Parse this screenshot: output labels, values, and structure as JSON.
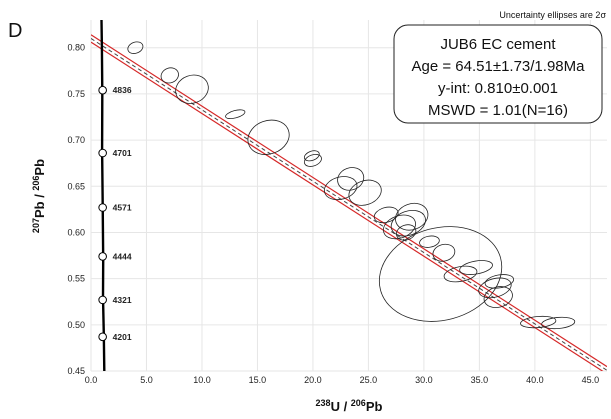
{
  "panel_label": "D",
  "top_note": "Uncertainty ellipses are 2σ",
  "stats_box": {
    "title": "JUB6 EC cement",
    "age": "Age = 64.51±1.73/1.98Ma",
    "yint": "y-int: 0.810±0.001",
    "mswd": "MSWD = 1.01(N=16)"
  },
  "chart_data": {
    "type": "scatter",
    "xlabel": {
      "sup": "238",
      "main": "U / ",
      "sup2": "206",
      "main2": "Pb"
    },
    "ylabel": {
      "sup": "207",
      "main": "Pb / ",
      "sup2": "206",
      "main2": "Pb"
    },
    "xlim": [
      0,
      46.5
    ],
    "ylim": [
      0.45,
      0.83
    ],
    "x_ticks": [
      "0.0",
      "5.0",
      "10.0",
      "15.0",
      "20.0",
      "25.0",
      "30.0",
      "35.0",
      "40.0",
      "45.0"
    ],
    "x_tick_values": [
      0,
      5,
      10,
      15,
      20,
      25,
      30,
      35,
      40,
      45
    ],
    "y_ticks": [
      "0.45",
      "0.50",
      "0.55",
      "0.60",
      "0.65",
      "0.70",
      "0.75",
      "0.80"
    ],
    "y_tick_values": [
      0.45,
      0.5,
      0.55,
      0.6,
      0.65,
      0.7,
      0.75,
      0.8
    ],
    "concordia_labels": [
      {
        "label": "4836",
        "x": 1.05,
        "y": 0.754
      },
      {
        "label": "4701",
        "x": 1.05,
        "y": 0.686
      },
      {
        "label": "4571",
        "x": 1.05,
        "y": 0.627
      },
      {
        "label": "4444",
        "x": 1.05,
        "y": 0.574
      },
      {
        "label": "4321",
        "x": 1.05,
        "y": 0.527
      },
      {
        "label": "4201",
        "x": 1.05,
        "y": 0.487
      }
    ],
    "concordia_curve": [
      [
        1.2,
        0.45
      ],
      [
        1.15,
        0.49
      ],
      [
        1.08,
        0.53
      ],
      [
        1.1,
        0.57
      ],
      [
        1.05,
        0.63
      ],
      [
        1.0,
        0.69
      ],
      [
        1.02,
        0.75
      ],
      [
        0.98,
        0.8
      ],
      [
        0.95,
        0.83
      ]
    ],
    "regression": {
      "y_intercept": 0.81,
      "x_at_ylim_min": 46.6,
      "upper_offset": 0.004,
      "lower_offset": -0.004
    },
    "ellipses": [
      {
        "x": 4.0,
        "y": 0.8,
        "rx": 0.7,
        "ry": 0.006,
        "rot": -20
      },
      {
        "x": 7.1,
        "y": 0.77,
        "rx": 0.8,
        "ry": 0.008,
        "rot": -20
      },
      {
        "x": 9.1,
        "y": 0.755,
        "rx": 1.5,
        "ry": 0.015,
        "rot": -20
      },
      {
        "x": 13.0,
        "y": 0.728,
        "rx": 0.9,
        "ry": 0.004,
        "rot": -15
      },
      {
        "x": 16.0,
        "y": 0.703,
        "rx": 1.9,
        "ry": 0.018,
        "rot": -20
      },
      {
        "x": 20.0,
        "y": 0.678,
        "rx": 0.8,
        "ry": 0.006,
        "rot": -20
      },
      {
        "x": 19.9,
        "y": 0.683,
        "rx": 0.7,
        "ry": 0.005,
        "rot": -20
      },
      {
        "x": 23.4,
        "y": 0.658,
        "rx": 1.2,
        "ry": 0.012,
        "rot": -20
      },
      {
        "x": 22.5,
        "y": 0.648,
        "rx": 1.5,
        "ry": 0.012,
        "rot": -15
      },
      {
        "x": 24.7,
        "y": 0.643,
        "rx": 1.5,
        "ry": 0.013,
        "rot": -20
      },
      {
        "x": 26.6,
        "y": 0.619,
        "rx": 1.1,
        "ry": 0.008,
        "rot": -15
      },
      {
        "x": 28.9,
        "y": 0.617,
        "rx": 1.5,
        "ry": 0.014,
        "rot": -20
      },
      {
        "x": 28.6,
        "y": 0.61,
        "rx": 1.6,
        "ry": 0.013,
        "rot": -20
      },
      {
        "x": 27.8,
        "y": 0.606,
        "rx": 1.5,
        "ry": 0.012,
        "rot": -20
      },
      {
        "x": 28.4,
        "y": 0.6,
        "rx": 0.9,
        "ry": 0.008,
        "rot": -20
      },
      {
        "x": 30.5,
        "y": 0.59,
        "rx": 0.9,
        "ry": 0.006,
        "rot": -10
      },
      {
        "x": 31.8,
        "y": 0.578,
        "rx": 1.0,
        "ry": 0.009,
        "rot": -15
      },
      {
        "x": 31.5,
        "y": 0.555,
        "rx": 5.6,
        "ry": 0.05,
        "rot": -15
      },
      {
        "x": 33.3,
        "y": 0.555,
        "rx": 1.5,
        "ry": 0.008,
        "rot": -10
      },
      {
        "x": 34.7,
        "y": 0.562,
        "rx": 1.5,
        "ry": 0.007,
        "rot": -10
      },
      {
        "x": 36.4,
        "y": 0.54,
        "rx": 1.5,
        "ry": 0.01,
        "rot": -15
      },
      {
        "x": 36.7,
        "y": 0.53,
        "rx": 1.3,
        "ry": 0.011,
        "rot": -15
      },
      {
        "x": 36.8,
        "y": 0.547,
        "rx": 1.3,
        "ry": 0.007,
        "rot": -10
      },
      {
        "x": 40.3,
        "y": 0.503,
        "rx": 1.6,
        "ry": 0.006,
        "rot": -5
      },
      {
        "x": 42.1,
        "y": 0.502,
        "rx": 1.5,
        "ry": 0.006,
        "rot": -5
      }
    ],
    "colors": {
      "regression": "#d62828",
      "regression_dashed": "#444444",
      "ellipse": "#222222",
      "concordia": "#000000"
    }
  }
}
